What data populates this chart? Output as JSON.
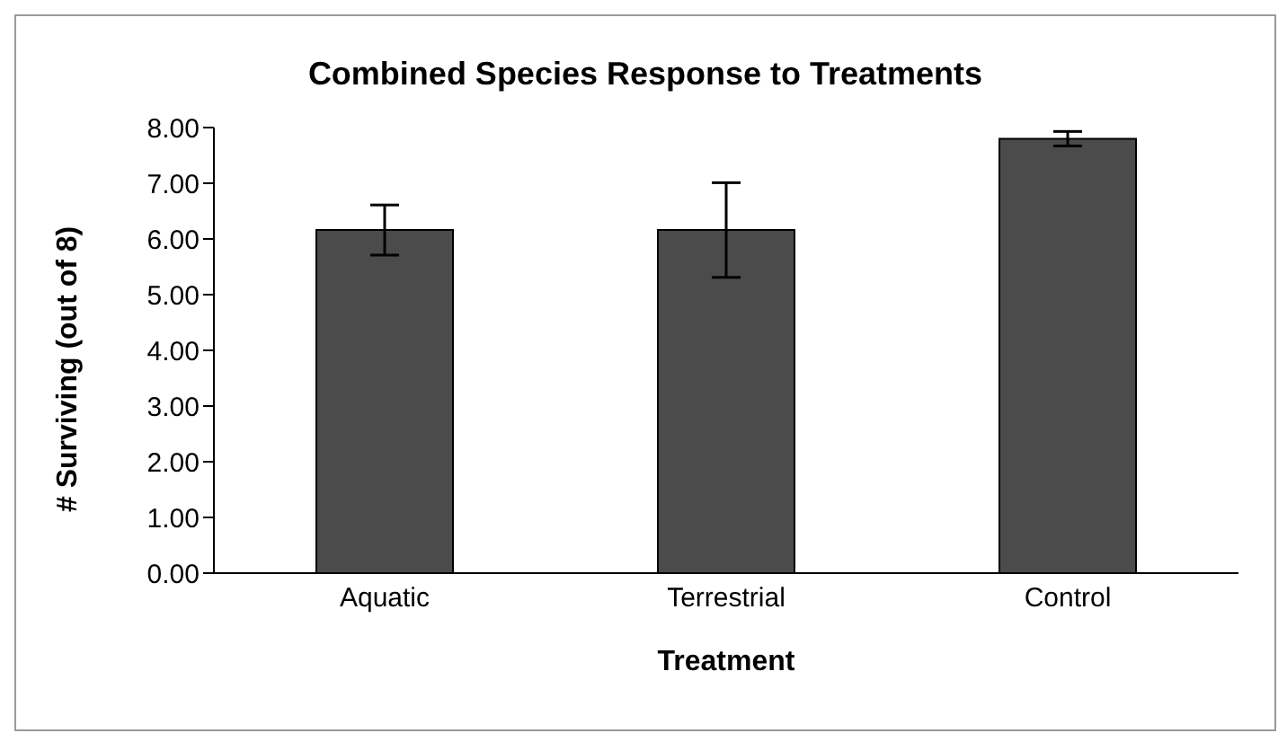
{
  "chart_data": {
    "type": "bar",
    "title": "Combined Species Response to Treatments",
    "xlabel": "Treatment",
    "ylabel": "# Surviving (out of 8)",
    "categories": [
      "Aquatic",
      "Terrestrial",
      "Control"
    ],
    "values": [
      6.16,
      6.16,
      7.8
    ],
    "errors": [
      0.45,
      0.85,
      0.13
    ],
    "color": "#4b4b4b",
    "ylim": [
      0,
      8
    ],
    "yticks": [
      {
        "value": 0,
        "label": "0.00"
      },
      {
        "value": 1,
        "label": "1.00"
      },
      {
        "value": 2,
        "label": "2.00"
      },
      {
        "value": 3,
        "label": "3.00"
      },
      {
        "value": 4,
        "label": "4.00"
      },
      {
        "value": 5,
        "label": "5.00"
      },
      {
        "value": 6,
        "label": "6.00"
      },
      {
        "value": 7,
        "label": "7.00"
      },
      {
        "value": 8,
        "label": "8.00"
      }
    ],
    "grid": false,
    "legend": false
  }
}
